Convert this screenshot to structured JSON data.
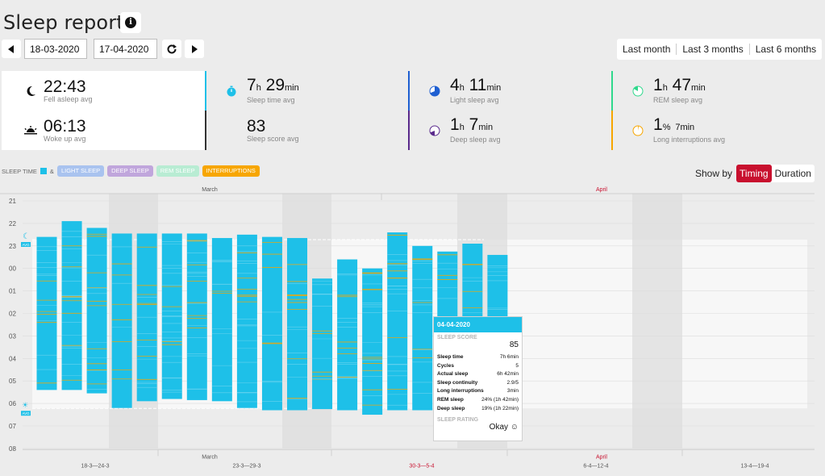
{
  "header": {
    "title": "Sleep report",
    "date_from": "18-03-2020",
    "date_to": "17-04-2020",
    "ranges": [
      "Last month",
      "Last 3 months",
      "Last 6 months"
    ]
  },
  "stats": {
    "fell_asleep": {
      "value": "22:43",
      "label": "Fell asleep avg"
    },
    "woke_up": {
      "value": "06:13",
      "label": "Woke up avg"
    },
    "sleep_time": {
      "h": "7",
      "m": "29",
      "hunit": "h",
      "munit": "min",
      "label": "Sleep time avg",
      "color": "#1ec0e8"
    },
    "sleep_score": {
      "value": "83",
      "label": "Sleep score avg",
      "color": "#333333"
    },
    "light_sleep": {
      "h": "4",
      "m": "11",
      "hunit": "h",
      "munit": "min",
      "label": "Light sleep avg",
      "color": "#1f5fd1"
    },
    "deep_sleep": {
      "h": "1",
      "m": "7",
      "hunit": "h",
      "munit": "min",
      "label": "Deep sleep avg",
      "color": "#5a2a8c"
    },
    "rem_sleep": {
      "h": "1",
      "m": "47",
      "hunit": "h",
      "munit": "min",
      "label": "REM sleep avg",
      "color": "#2fd88c"
    },
    "long_interruptions": {
      "h": "1",
      "m": "7",
      "hunit": "%",
      "munit": "min",
      "label": "Long interruptions avg",
      "color": "#f7a600"
    }
  },
  "legend": {
    "sleep_time": "SLEEP TIME",
    "amp": "&",
    "light": "LIGHT SLEEP",
    "deep": "DEEP SLEEP",
    "rem": "REM SLEEP",
    "interruptions": "INTERRUPTIONS",
    "colors": {
      "light": "#a9c3ef",
      "deep": "#c0a6dc",
      "rem": "#b8ecd3",
      "interruptions": "#f7a600",
      "sleep": "#1ec0e8"
    }
  },
  "show_by": {
    "label": "Show by",
    "options": [
      "Timing",
      "Duration"
    ],
    "active": "Timing"
  },
  "chart_data": {
    "type": "bar",
    "y_ticks": [
      "21",
      "22",
      "23",
      "00",
      "01",
      "02",
      "03",
      "04",
      "05",
      "06",
      "07",
      "08"
    ],
    "months_top": [
      "March",
      "April"
    ],
    "months_bottom": [
      "March",
      "April"
    ],
    "weeks": [
      "18-3—24-3",
      "23-3—29-3",
      "30-3—5-4",
      "6-4—12-4",
      "13-4—19-4"
    ],
    "avg_markers": {
      "fell_asleep": "22:43",
      "woke_up": "06:13",
      "tag": "AVG"
    },
    "bars": [
      {
        "start": 22.6,
        "end": 29.4
      },
      {
        "start": 21.9,
        "end": 29.4
      },
      {
        "start": 22.2,
        "end": 29.55
      },
      {
        "start": 22.45,
        "end": 30.2
      },
      {
        "start": 22.45,
        "end": 29.9
      },
      {
        "start": 22.45,
        "end": 29.8
      },
      {
        "start": 22.45,
        "end": 29.85
      },
      {
        "start": 22.65,
        "end": 29.9
      },
      {
        "start": 22.5,
        "end": 30.2
      },
      {
        "start": 22.6,
        "end": 30.3
      },
      {
        "start": 22.65,
        "end": 30.3
      },
      {
        "start": 24.45,
        "end": 30.25
      },
      {
        "start": 23.6,
        "end": 30.3
      },
      {
        "start": 24.0,
        "end": 30.5
      },
      {
        "start": 22.4,
        "end": 30.3
      },
      {
        "start": 23.0,
        "end": 30.3
      },
      {
        "start": 23.25,
        "end": 30.55
      },
      {
        "start": 22.9,
        "end": 30.0
      },
      {
        "start": 23.4,
        "end": 29.2
      }
    ],
    "highlight_index": 17
  },
  "tooltip": {
    "date": "04-04-2020",
    "score_label": "SLEEP SCORE",
    "score": "85",
    "rows": [
      {
        "k": "Sleep time",
        "v": "7h 6min"
      },
      {
        "k": "Cycles",
        "v": "5"
      },
      {
        "k": "Actual sleep",
        "v": "6h 42min"
      },
      {
        "k": "Sleep continuity",
        "v": "2.9/5"
      },
      {
        "k": "Long interruptions",
        "v": "3min"
      },
      {
        "k": "REM sleep",
        "v": "24% (1h 42min)"
      },
      {
        "k": "Deep sleep",
        "v": "19% (1h 22min)"
      }
    ],
    "rating_label": "SLEEP RATING",
    "rating": "Okay ☺"
  }
}
